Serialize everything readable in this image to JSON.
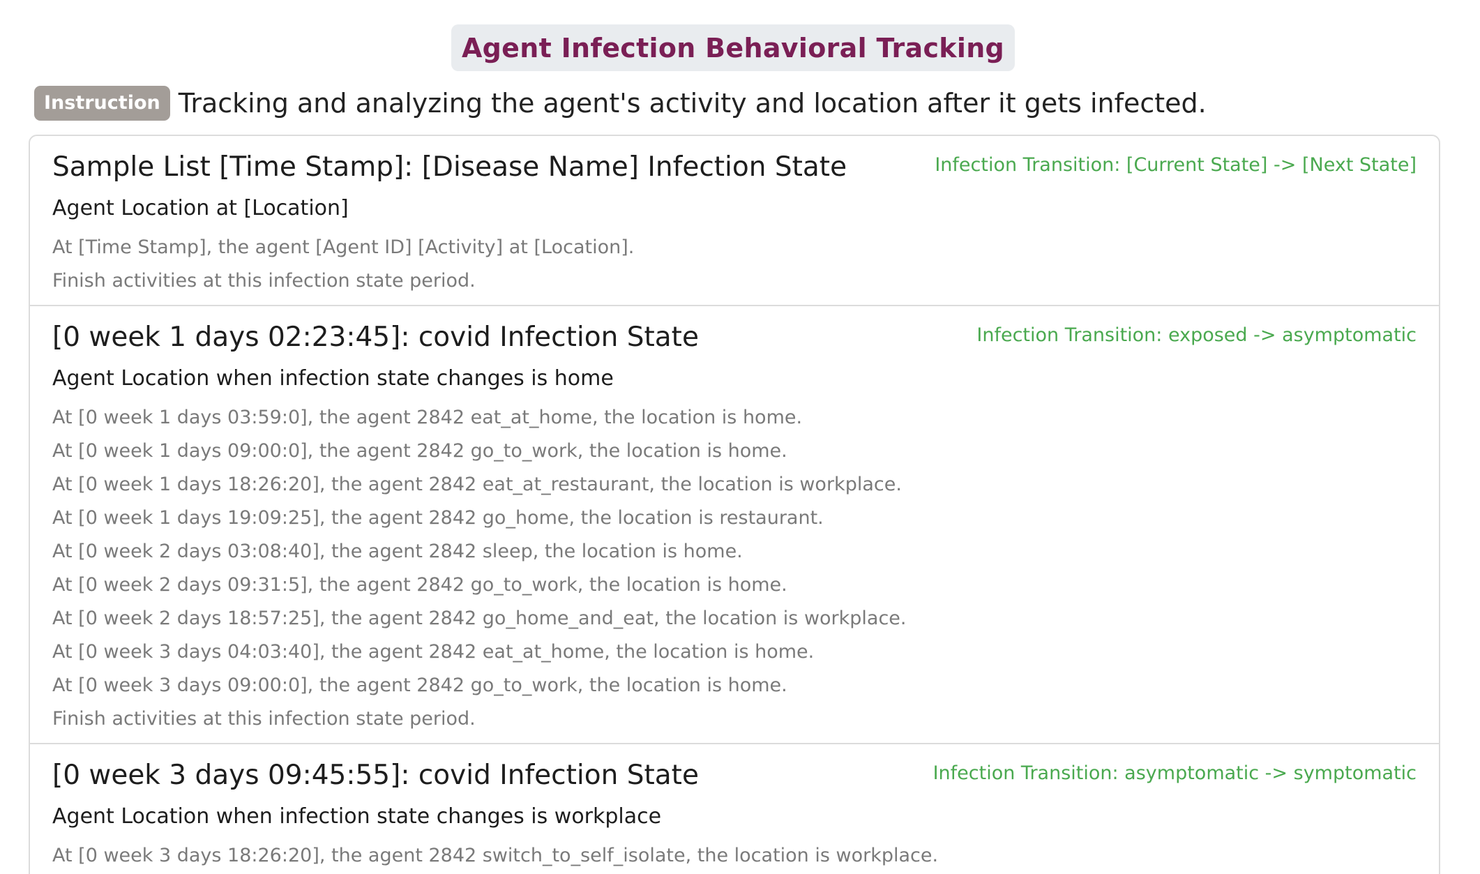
{
  "title": "Agent Infection Behavioral Tracking",
  "instruction": {
    "badge": "Instruction",
    "text": "Tracking and analyzing the agent's activity and location after it gets infected."
  },
  "sections": [
    {
      "title": "Sample List [Time Stamp]: [Disease Name] Infection State",
      "transition": "Infection Transition: [Current State] -> [Next State]",
      "location": "Agent Location at [Location]",
      "activities": [
        "At [Time Stamp], the agent [Agent ID] [Activity] at [Location].",
        "Finish activities at this infection state period."
      ]
    },
    {
      "title": "[0 week 1 days 02:23:45]: covid Infection State",
      "transition": "Infection Transition: exposed -> asymptomatic",
      "location": "Agent Location when infection state changes is home",
      "activities": [
        "At [0 week 1 days 03:59:0], the agent 2842 eat_at_home, the location is home.",
        "At [0 week 1 days 09:00:0], the agent 2842 go_to_work, the location is home.",
        "At [0 week 1 days 18:26:20], the agent 2842 eat_at_restaurant, the location is workplace.",
        "At [0 week 1 days 19:09:25], the agent 2842 go_home, the location is restaurant.",
        "At [0 week 2 days 03:08:40], the agent 2842 sleep, the location is home.",
        "At [0 week 2 days 09:31:5], the agent 2842 go_to_work, the location is home.",
        "At [0 week 2 days 18:57:25], the agent 2842 go_home_and_eat, the location is workplace.",
        "At [0 week 3 days 04:03:40], the agent 2842 eat_at_home, the location is home.",
        "At [0 week 3 days 09:00:0], the agent 2842 go_to_work, the location is home.",
        "Finish activities at this infection state period."
      ]
    },
    {
      "title": "[0 week 3 days 09:45:55]: covid Infection State",
      "transition": "Infection Transition: asymptomatic -> symptomatic",
      "location": "Agent Location when infection state changes is workplace",
      "activities": [
        "At [0 week 3 days 18:26:20], the agent 2842 switch_to_self_isolate, the location is workplace."
      ]
    }
  ]
}
